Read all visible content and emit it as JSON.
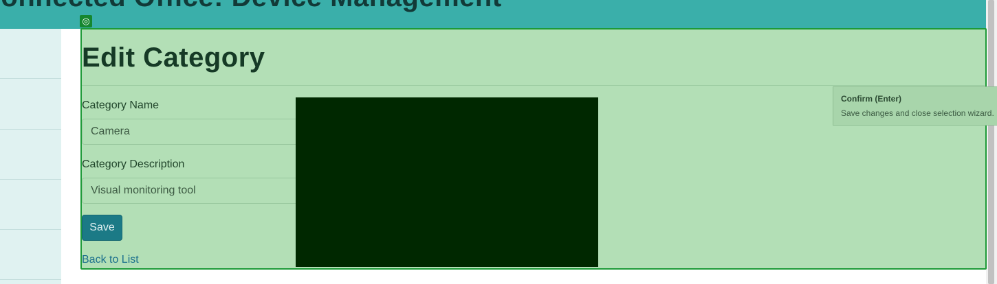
{
  "header": {
    "title": "Connected Office: Device Management"
  },
  "page": {
    "heading": "Edit Category",
    "fields": [
      {
        "label": "Category Name",
        "value": "Camera"
      },
      {
        "label": "Category Description",
        "value": "Visual monitoring tool"
      }
    ],
    "save_label": "Save",
    "back_label": "Back to List"
  },
  "overlay": {
    "badge_icon": "target-icon",
    "badge_glyph": "◎",
    "tooltip_title": "Confirm (Enter)",
    "tooltip_desc": "Save changes and close selection wizard."
  },
  "colors": {
    "header_bg": "#3aafaa",
    "overlay_bg": "#b3dfb6",
    "overlay_border": "#1d9a38",
    "save_button": "#1b7a86",
    "redacted_box": "#002800"
  }
}
